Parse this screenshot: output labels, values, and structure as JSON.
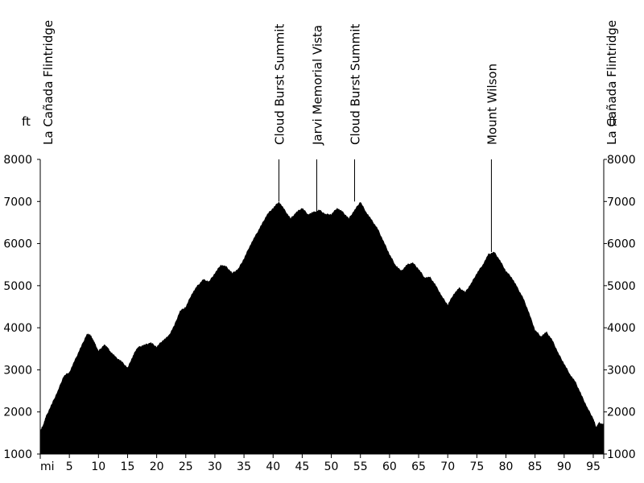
{
  "chart_data": {
    "type": "area",
    "y_unit_left": "ft",
    "y_unit_right": "ft",
    "x_unit": "mi",
    "xlim": [
      0,
      96.8
    ],
    "ylim": [
      1000,
      8000
    ],
    "x_ticks": [
      5,
      10,
      15,
      20,
      25,
      30,
      35,
      40,
      45,
      50,
      55,
      60,
      65,
      70,
      75,
      80,
      85,
      90,
      95
    ],
    "y_ticks": [
      1000,
      2000,
      3000,
      4000,
      5000,
      6000,
      7000,
      8000
    ],
    "fill_color": "#000000",
    "x": [
      0,
      0.5,
      1,
      2,
      3,
      4,
      5,
      6,
      7,
      8,
      8.5,
      9,
      9.5,
      10,
      11,
      11.5,
      12,
      13,
      14,
      15,
      15.8,
      16.5,
      17,
      18,
      19,
      20,
      21,
      22,
      23,
      24,
      25,
      26,
      27,
      28,
      29,
      30,
      31,
      32,
      33,
      34,
      35,
      36,
      37,
      38,
      39,
      40,
      41,
      42,
      43,
      44,
      45,
      46,
      47,
      48,
      49,
      50,
      51,
      52,
      53,
      54,
      55,
      56,
      57,
      58,
      59,
      60,
      61,
      62,
      63,
      64,
      65,
      66,
      67,
      68,
      69,
      70,
      71,
      72,
      73,
      74,
      75,
      76,
      77,
      78,
      79,
      80,
      81,
      82,
      83,
      84,
      85,
      86,
      87,
      88,
      89,
      90,
      91,
      92,
      93,
      94,
      95,
      95.5,
      96,
      96.8
    ],
    "y": [
      1550,
      1700,
      1900,
      2200,
      2500,
      2850,
      2950,
      3250,
      3550,
      3850,
      3850,
      3750,
      3600,
      3450,
      3600,
      3550,
      3450,
      3300,
      3200,
      3050,
      3300,
      3500,
      3550,
      3600,
      3650,
      3550,
      3700,
      3800,
      4050,
      4400,
      4500,
      4800,
      5000,
      5150,
      5100,
      5300,
      5500,
      5450,
      5300,
      5400,
      5650,
      5950,
      6200,
      6450,
      6700,
      6850,
      7000,
      6800,
      6600,
      6750,
      6850,
      6700,
      6750,
      6800,
      6700,
      6700,
      6850,
      6750,
      6600,
      6800,
      7000,
      6750,
      6550,
      6350,
      6050,
      5750,
      5500,
      5350,
      5500,
      5550,
      5400,
      5200,
      5200,
      5000,
      4750,
      4550,
      4800,
      4950,
      4850,
      5050,
      5300,
      5500,
      5750,
      5800,
      5600,
      5350,
      5200,
      4950,
      4700,
      4350,
      3950,
      3800,
      3900,
      3700,
      3400,
      3150,
      2900,
      2700,
      2400,
      2100,
      1850,
      1650,
      1750,
      1700
    ],
    "markers": [
      {
        "x": 0,
        "label": "La Cañada Flintridge",
        "elev": null
      },
      {
        "x": 41,
        "label": "Cloud Burst Summit",
        "elev": 7000
      },
      {
        "x": 47.5,
        "label": "Jarvi Memorial Vista",
        "elev": 6750
      },
      {
        "x": 54,
        "label": "Cloud Burst Summit",
        "elev": 7000
      },
      {
        "x": 77.5,
        "label": "Mount Wilson",
        "elev": 5800
      },
      {
        "x": 96.8,
        "label": "La Cañada Flintridge",
        "elev": null
      }
    ]
  }
}
